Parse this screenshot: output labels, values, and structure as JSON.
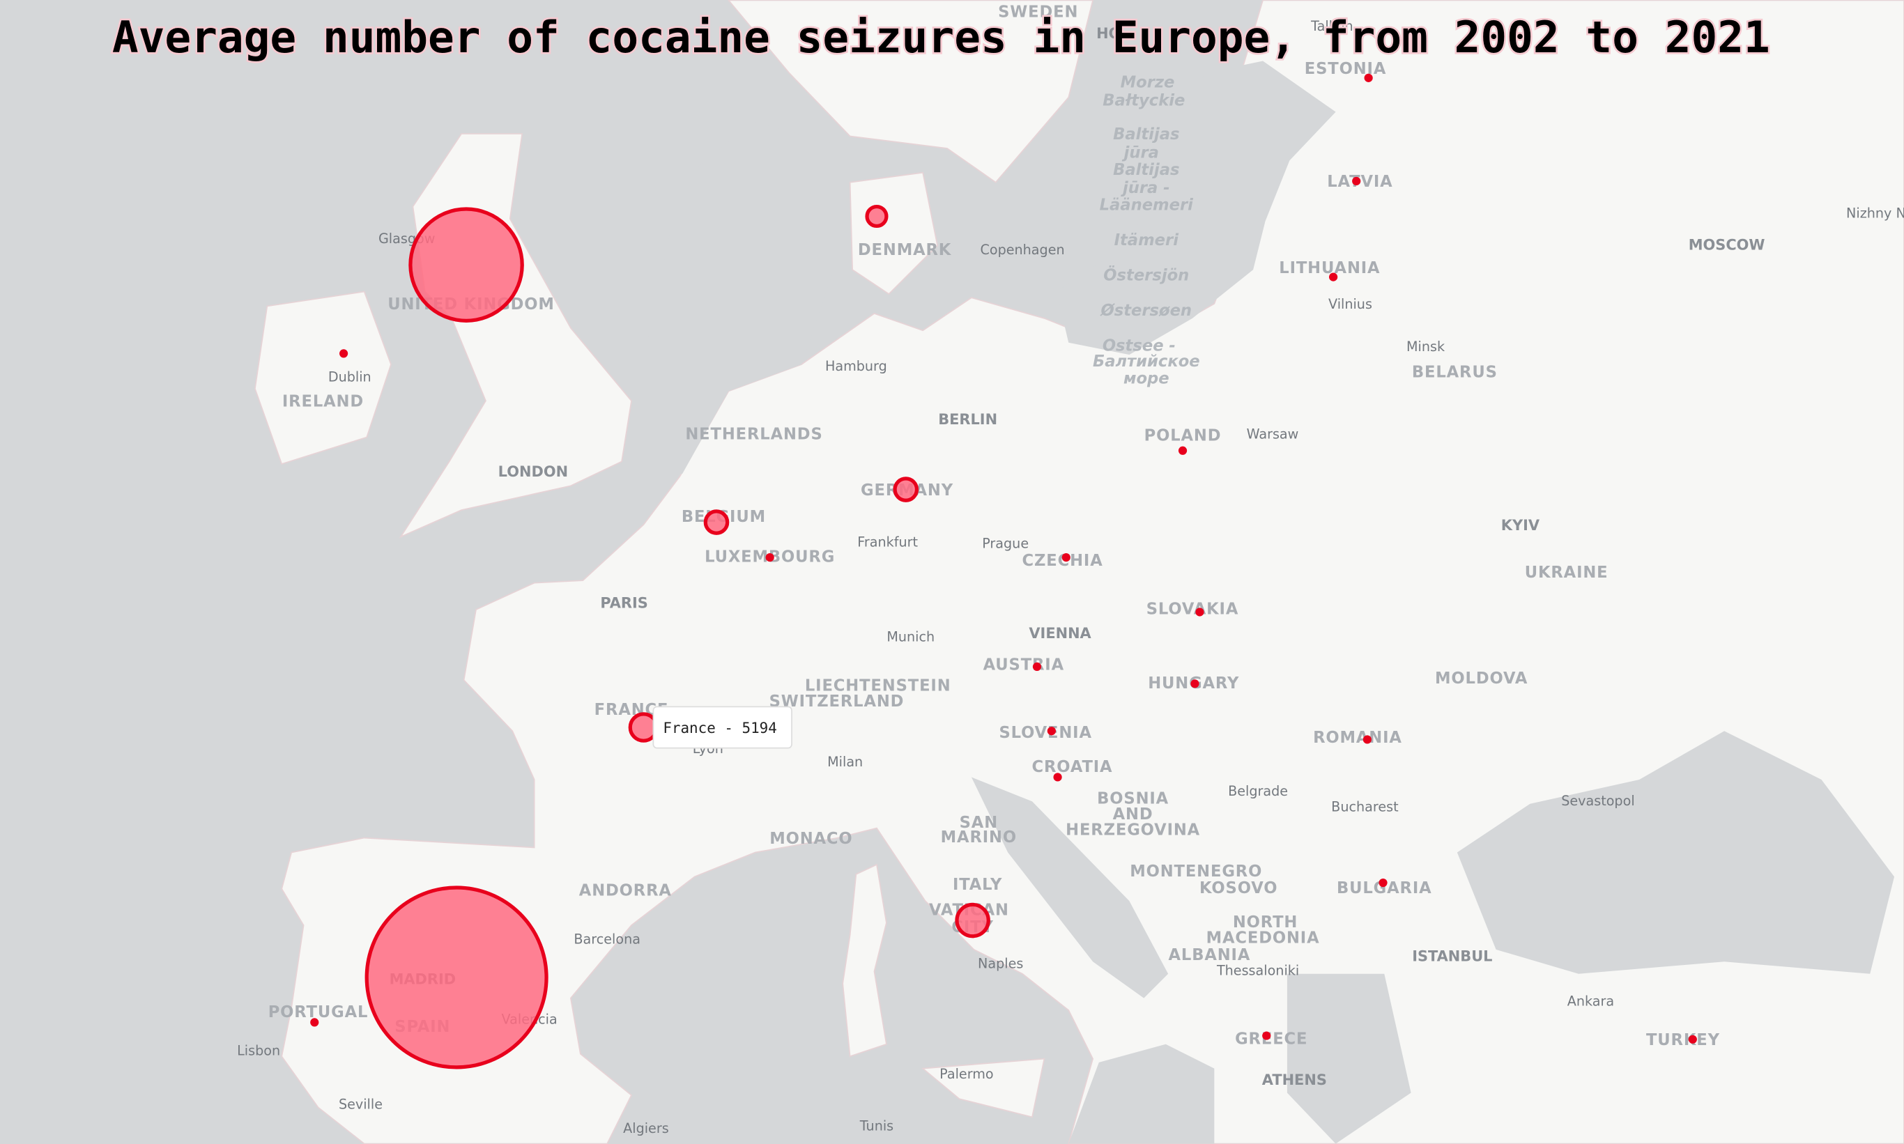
{
  "title": "Average number of cocaine seizures in Europe, from 2002 to 2021",
  "seizures": {
    "color": "#ff6b81",
    "stroke": "#e8001c",
    "values": [
      90830,
      235060,
      5194,
      2747,
      3477,
      3477,
      7254,
      526,
      526,
      526,
      526,
      526,
      526,
      526,
      526,
      526,
      526,
      526,
      526,
      526,
      526,
      526,
      526,
      526
    ]
  },
  "tooltip": "France - 5194",
  "map_labels": [
    "SWEDEN",
    "Tallinn",
    "ESTONIA",
    "HO",
    "Morze",
    "Bałtyckie",
    "Baltijas",
    "jūra",
    "Baltijas",
    "jūra -",
    "Läänemeri",
    "Itämeri",
    "Östersjön",
    "Østersøen",
    "Ostsee -",
    "Балтийское",
    "море",
    "LATVIA",
    "Nizhny N",
    "DENMARK",
    "Copenhagen",
    "Glasgow",
    "UNITED KINGDOM",
    "MOSCOW",
    "LITHUANIA",
    "Vilnius",
    "Dublin",
    "Hamburg",
    "Minsk",
    "BELARUS",
    "IRELAND",
    "NETHERLANDS",
    "BERLIN",
    "POLAND",
    "Warsaw",
    "LONDON",
    "GERMANY",
    "BELGIUM",
    "KYIV",
    "Frankfurt",
    "Prague",
    "LUXEMBOURG",
    "CZECHIA",
    "UKRAINE",
    "PARIS",
    "SLOVAKIA",
    "VIENNA",
    "Munich",
    "AUSTRIA",
    "MOLDOVA",
    "HUNGARY",
    "LIECHTENSTEIN",
    "SWITZERLAND",
    "FRANCE",
    "Lyon",
    "SLOVENIA",
    "ROMANIA",
    "Milan",
    "CROATIA",
    "Belgrade",
    "BOSNIA",
    "AND",
    "HERZEGOVINA",
    "Sevastopol",
    "Bucharest",
    "SAN",
    "MARINO",
    "MONACO",
    "MONTENEGRO",
    "ITALY",
    "KOSOVO",
    "BULGARIA",
    "ANDORRA",
    "VATICAN",
    "CITY",
    "NORTH",
    "MACEDONIA",
    "Barcelona",
    "ALBANIA",
    "ISTANBUL",
    "Naples",
    "Thessaloniki",
    "MADRID",
    "PORTUGAL",
    "Valencia",
    "SPAIN",
    "Ankara",
    "GREECE",
    "TURKEY",
    "Lisbon",
    "ATHENS",
    "Palermo",
    "Seville",
    "Algiers",
    "Tunis"
  ]
}
